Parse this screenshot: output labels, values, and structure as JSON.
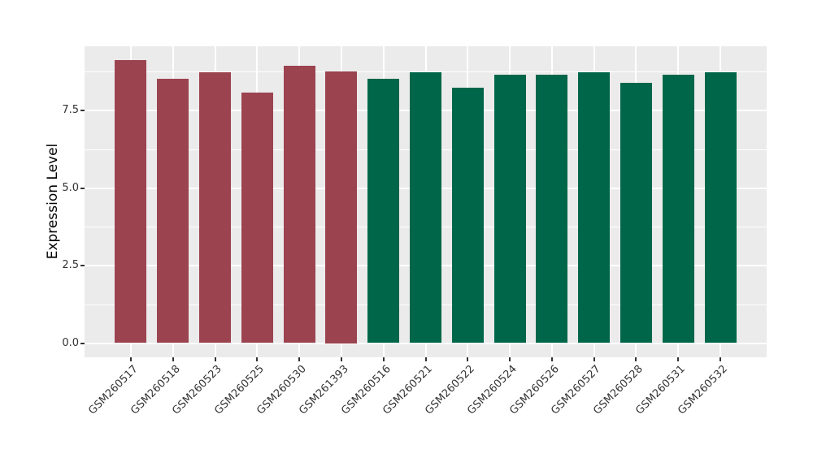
{
  "chart_data": {
    "type": "bar",
    "title": "",
    "xlabel": "",
    "ylabel": "Expression Level",
    "categories": [
      "GSM260517",
      "GSM260518",
      "GSM260523",
      "GSM260525",
      "GSM260530",
      "GSM261393",
      "GSM260516",
      "GSM260521",
      "GSM260522",
      "GSM260524",
      "GSM260526",
      "GSM260527",
      "GSM260528",
      "GSM260531",
      "GSM260532"
    ],
    "values": [
      9.13,
      8.52,
      8.73,
      8.08,
      8.94,
      8.75,
      8.52,
      8.72,
      8.23,
      8.64,
      8.64,
      8.72,
      8.39,
      8.66,
      8.72
    ],
    "bar_colors": [
      "#9C4350",
      "#9C4350",
      "#9C4350",
      "#9C4350",
      "#9C4350",
      "#9C4350",
      "#006649",
      "#006649",
      "#006649",
      "#006649",
      "#006649",
      "#006649",
      "#006649",
      "#006649",
      "#006649"
    ],
    "palette": {
      "group1_maroon": "#9C4350",
      "group2_green": "#006649"
    },
    "yticks": [
      0,
      2.5,
      5,
      7.5
    ],
    "ytick_labels": [
      "0.0",
      "2.5",
      "5.0",
      "7.5"
    ],
    "yticks_minor": [
      1.25,
      3.75,
      6.25,
      8.75
    ],
    "ylim": [
      0,
      9.57
    ],
    "grid": true,
    "legend": "none",
    "x_label_angle": 45,
    "colors": {
      "panel_bg": "#EBEBEB",
      "grid": "#FFFFFF",
      "axis_text": "#333333",
      "axis_title": "#000000",
      "figure_bg": "#FFFFFF"
    }
  }
}
